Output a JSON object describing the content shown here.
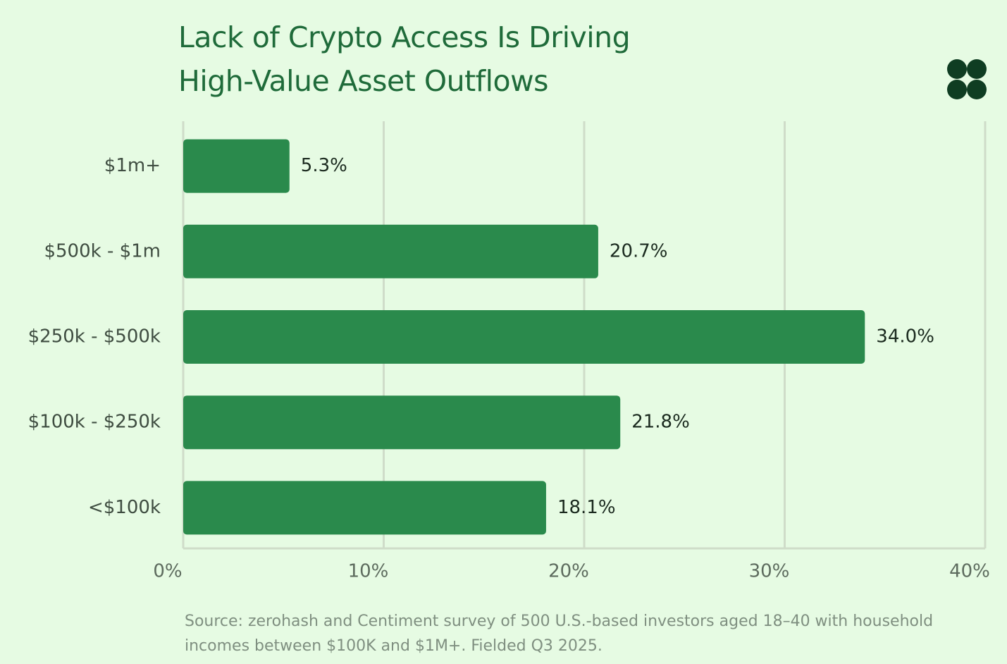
{
  "chart_data": {
    "type": "bar",
    "orientation": "horizontal",
    "title": "Lack of Crypto Access Is Driving High-Value Asset Outflows",
    "categories": [
      "$1m+",
      "$500k - $1m",
      "$250k - $500k",
      "$100k - $250k",
      "<$100k"
    ],
    "values": [
      5.3,
      20.7,
      34.0,
      21.8,
      18.1
    ],
    "value_labels": [
      "5.3%",
      "20.7%",
      "34.0%",
      "21.8%",
      "18.1%"
    ],
    "color": "#2a8a4c",
    "xlim": [
      0,
      40
    ],
    "xticks": [
      {
        "value": 0,
        "label": "0%"
      },
      {
        "value": 10,
        "label": "10%"
      },
      {
        "value": 20,
        "label": "20%"
      },
      {
        "value": 30,
        "label": "30%"
      },
      {
        "value": 40,
        "label": "40%"
      }
    ],
    "grid": true,
    "source": "Source: zerohash and Centiment survey of 500 U.S.-based investors aged 18–40 with household incomes between $100K and $1M+. Fielded Q3 2025."
  }
}
